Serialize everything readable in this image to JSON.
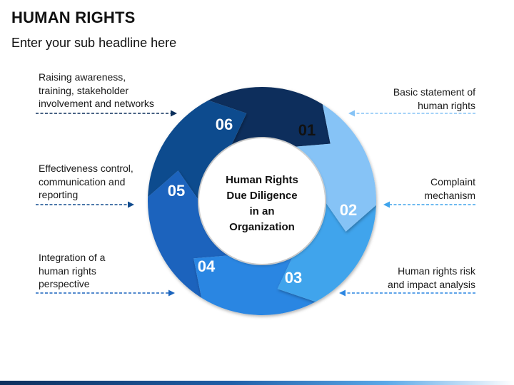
{
  "header": {
    "title": "HUMAN RIGHTS",
    "subtitle": "Enter your sub headline here"
  },
  "center": {
    "lines": [
      "Human Rights",
      "Due Diligence",
      "in an",
      "Organization"
    ]
  },
  "segments": [
    {
      "number": "01",
      "color": "#86c3f6",
      "text_color": "#111111",
      "label_lines": [
        "Basic statement of",
        "human rights"
      ],
      "side": "right",
      "arrow_color": "#86c3f6"
    },
    {
      "number": "02",
      "color": "#3fa4ec",
      "text_color": "#ffffff",
      "label_lines": [
        "Complaint",
        "mechanism"
      ],
      "side": "right",
      "arrow_color": "#3fa4ec"
    },
    {
      "number": "03",
      "color": "#2b86e2",
      "text_color": "#ffffff",
      "label_lines": [
        "Human rights risk",
        "and impact analysis"
      ],
      "side": "right",
      "arrow_color": "#2b86e2"
    },
    {
      "number": "04",
      "color": "#1b64bd",
      "text_color": "#ffffff",
      "label_lines": [
        "Integration of a",
        "human rights",
        "perspective"
      ],
      "side": "left",
      "arrow_color": "#1b64bd"
    },
    {
      "number": "05",
      "color": "#114c8e",
      "text_color": "#ffffff",
      "label_lines": [
        "Effectiveness control,",
        "communication and",
        "reporting"
      ],
      "side": "left",
      "arrow_color": "#114c8e"
    },
    {
      "number": "06",
      "color": "#0b2f5b",
      "text_color": "#ffffff",
      "label_lines": [
        "Raising awareness,",
        "training, stakeholder",
        "involvement and networks"
      ],
      "side": "left",
      "arrow_color": "#0b2f5b"
    }
  ]
}
